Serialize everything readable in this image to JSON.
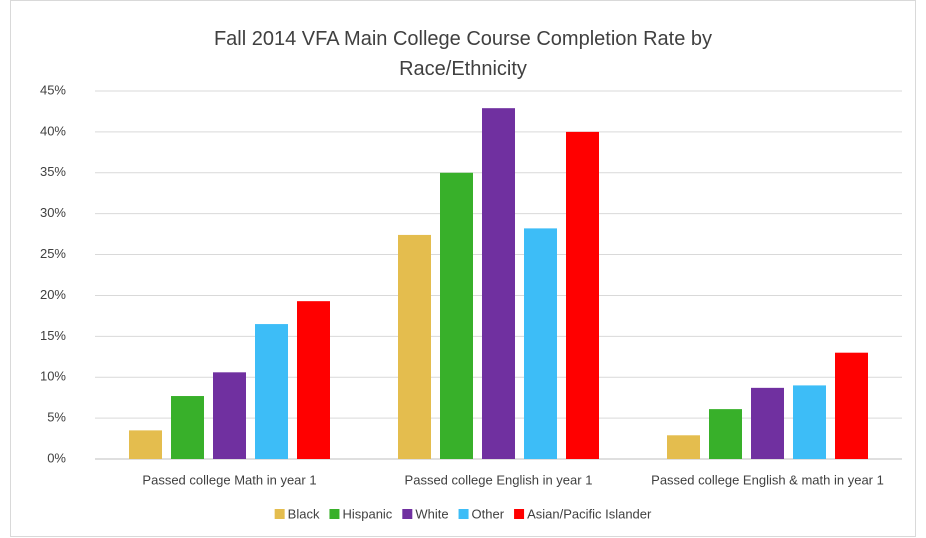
{
  "chart_data": {
    "type": "bar",
    "title": "Fall 2014 VFA Main College Course Completion Rate by Race/Ethnicity",
    "categories": [
      "Passed college Math in year 1",
      "Passed college English in year 1",
      "Passed college English & math in year 1"
    ],
    "series": [
      {
        "name": "Black",
        "color": "#e4bd4e",
        "values": [
          3.5,
          27.4,
          2.9
        ]
      },
      {
        "name": "Hispanic",
        "color": "#38b02a",
        "values": [
          7.7,
          35.0,
          6.1
        ]
      },
      {
        "name": "White",
        "color": "#7030a0",
        "values": [
          10.6,
          42.9,
          8.7
        ]
      },
      {
        "name": "Other",
        "color": "#3dbdf7",
        "values": [
          16.5,
          28.2,
          9.0
        ]
      },
      {
        "name": "Asian/Pacific Islander",
        "color": "#ff0000",
        "values": [
          19.3,
          40.0,
          13.0
        ]
      }
    ],
    "ylim": [
      0,
      45
    ],
    "yticks": [
      {
        "value": 0,
        "label": "0%"
      },
      {
        "value": 5,
        "label": "5%"
      },
      {
        "value": 10,
        "label": "10%"
      },
      {
        "value": 15,
        "label": "15%"
      },
      {
        "value": 20,
        "label": "20%"
      },
      {
        "value": 25,
        "label": "25%"
      },
      {
        "value": 30,
        "label": "30%"
      },
      {
        "value": 35,
        "label": "35%"
      },
      {
        "value": 40,
        "label": "40%"
      },
      {
        "value": 45,
        "label": "45%"
      }
    ],
    "grid": true,
    "legend": "bottom"
  }
}
